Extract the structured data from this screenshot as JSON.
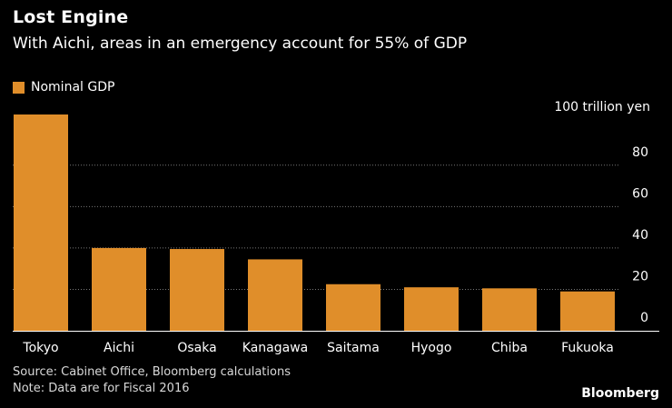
{
  "header": {
    "title": "Lost Engine",
    "subtitle": "With Aichi, areas in an emergency account for 55% of GDP"
  },
  "legend": {
    "label": "Nominal GDP"
  },
  "unit_label": "100 trillion yen",
  "footer": {
    "source": "Source: Cabinet Office, Bloomberg calculations",
    "note": "Note: Data are for Fiscal 2016",
    "brand": "Bloomberg"
  },
  "colors": {
    "bar": "#e08e2a",
    "grid": "#777777",
    "background": "#000000"
  },
  "chart_data": {
    "type": "bar",
    "title": "Lost Engine",
    "subtitle": "With Aichi, areas in an emergency account for 55% of GDP",
    "xlabel": "",
    "ylabel": "100 trillion yen",
    "legend": [
      "Nominal GDP"
    ],
    "legend_position": "top-left",
    "grid": true,
    "categories": [
      "Tokyo",
      "Aichi",
      "Osaka",
      "Kanagawa",
      "Saitama",
      "Hyogo",
      "Chiba",
      "Fukuoka"
    ],
    "values": [
      104.5,
      40,
      39.5,
      34.5,
      22.5,
      21,
      20.5,
      19
    ],
    "ylim": [
      0,
      104.5
    ],
    "yticks": [
      0,
      20,
      40,
      60,
      80
    ]
  }
}
